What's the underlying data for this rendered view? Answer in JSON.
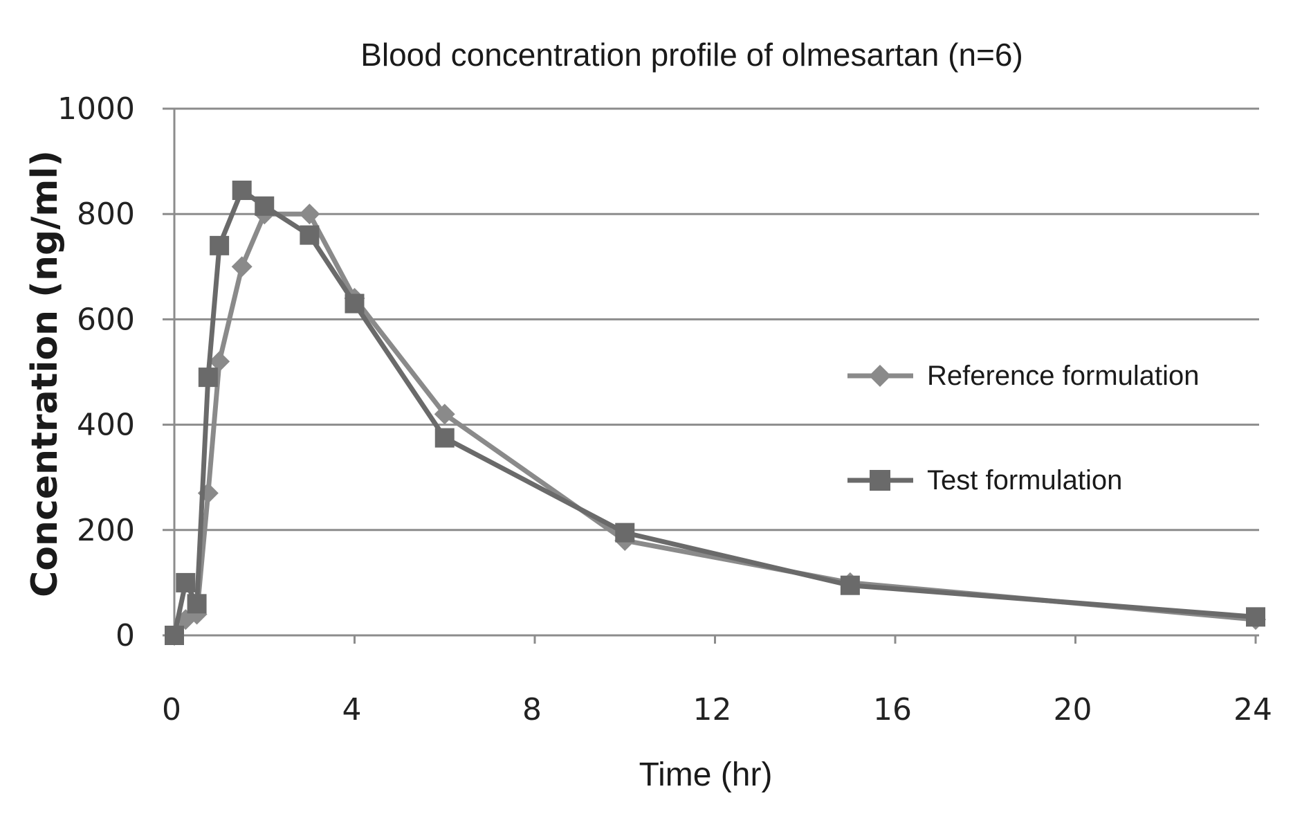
{
  "chart_data": {
    "type": "line",
    "title": "Blood concentration profile of olmesartan (n=6)",
    "xlabel": "Time (hr)",
    "ylabel": "Concentration (ng/ml)",
    "xlim": [
      0,
      24
    ],
    "ylim": [
      0,
      1000
    ],
    "xticks": [
      "0",
      "4",
      "8",
      "12",
      "16",
      "20",
      "24"
    ],
    "yticks": [
      "0",
      "200",
      "400",
      "600",
      "800",
      "1000"
    ],
    "grid": true,
    "legend_position": "right",
    "series": [
      {
        "name": "Reference formulation",
        "marker": "diamond",
        "color": "#8a8a8a",
        "x": [
          0,
          0.25,
          0.5,
          0.75,
          1,
          1.5,
          2,
          3,
          4,
          6,
          10,
          15,
          24
        ],
        "y": [
          0,
          30,
          40,
          270,
          520,
          700,
          800,
          800,
          640,
          420,
          180,
          100,
          30
        ]
      },
      {
        "name": "Test formulation",
        "marker": "square",
        "color": "#6a6a6a",
        "x": [
          0,
          0.25,
          0.5,
          0.75,
          1,
          1.5,
          2,
          3,
          4,
          6,
          10,
          15,
          24
        ],
        "y": [
          0,
          100,
          60,
          490,
          740,
          845,
          815,
          760,
          630,
          375,
          195,
          95,
          35
        ]
      }
    ]
  }
}
